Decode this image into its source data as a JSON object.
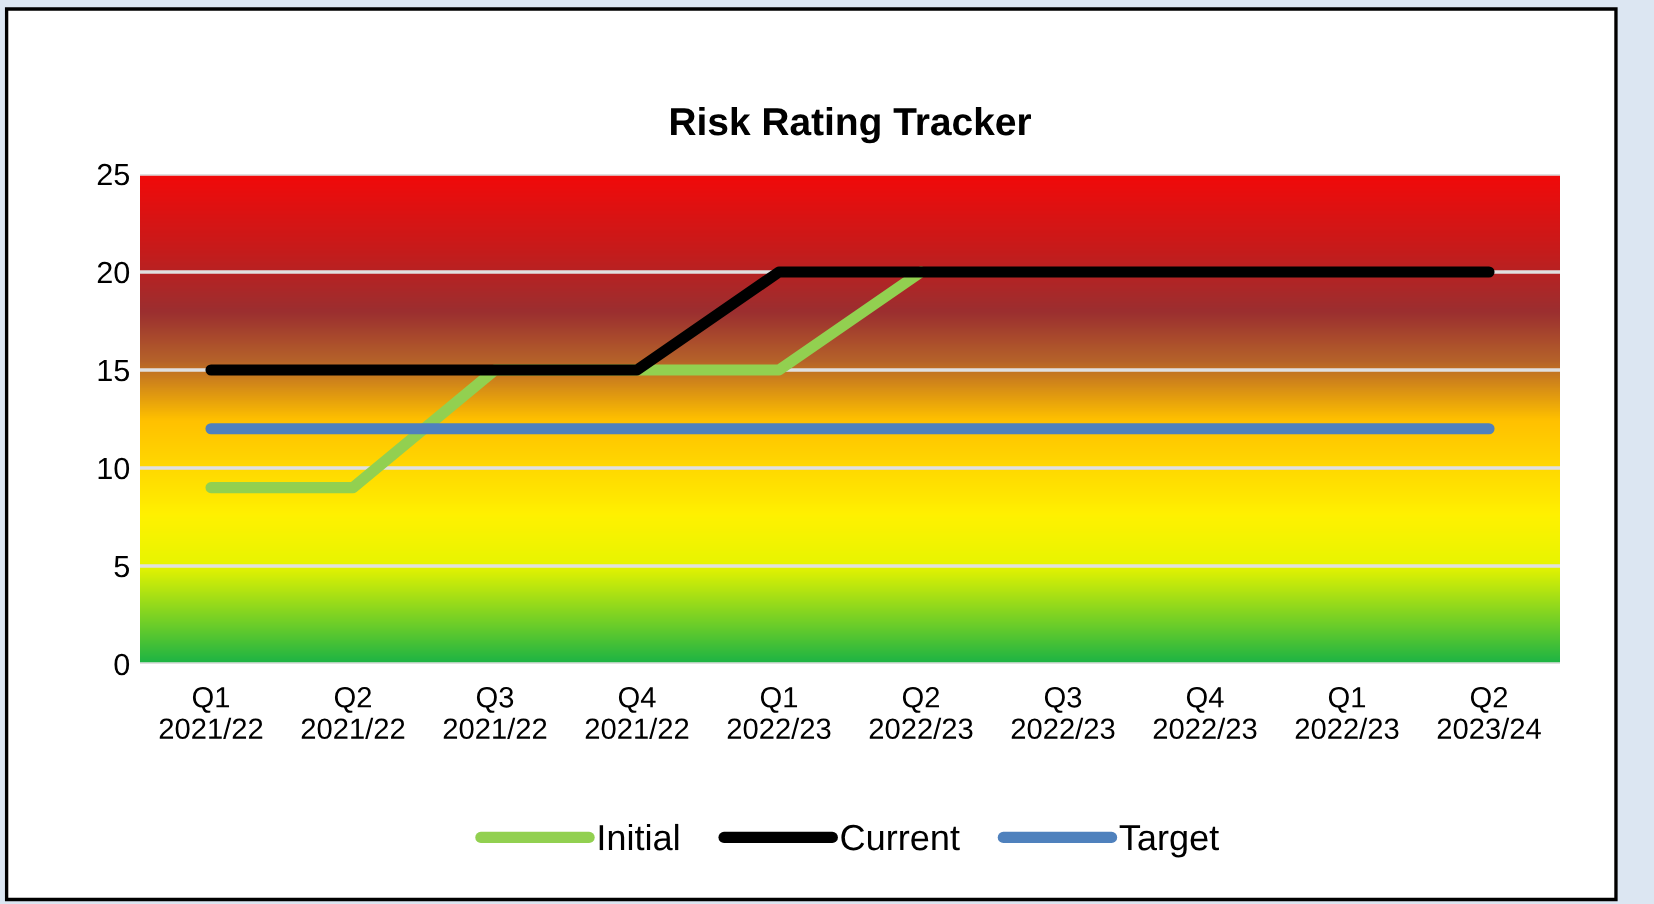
{
  "chart_data": {
    "type": "line",
    "title": "Risk Rating Tracker",
    "categories": [
      "Q1\n2021/22",
      "Q2\n2021/22",
      "Q3\n2021/22",
      "Q4\n2021/22",
      "Q1\n2022/23",
      "Q2\n2022/23",
      "Q3\n2022/23",
      "Q4\n2022/23",
      "Q1\n2022/23",
      "Q2\n2023/24"
    ],
    "series": [
      {
        "name": "Initial",
        "color": "#92d050",
        "values": [
          9,
          9,
          15,
          15,
          15,
          20,
          null,
          null,
          null,
          null
        ]
      },
      {
        "name": "Current",
        "color": "#000000",
        "values": [
          15,
          15,
          15,
          15,
          20,
          20,
          20,
          20,
          20,
          20
        ]
      },
      {
        "name": "Target",
        "color": "#4f81bd",
        "values": [
          12,
          12,
          12,
          12,
          12,
          12,
          12,
          12,
          12,
          12
        ]
      }
    ],
    "ylim": [
      0,
      25
    ],
    "yticks": [
      0,
      5,
      10,
      15,
      20,
      25
    ],
    "grid": "y",
    "legend": "bottom",
    "marker": "none",
    "line_style": "solid"
  }
}
